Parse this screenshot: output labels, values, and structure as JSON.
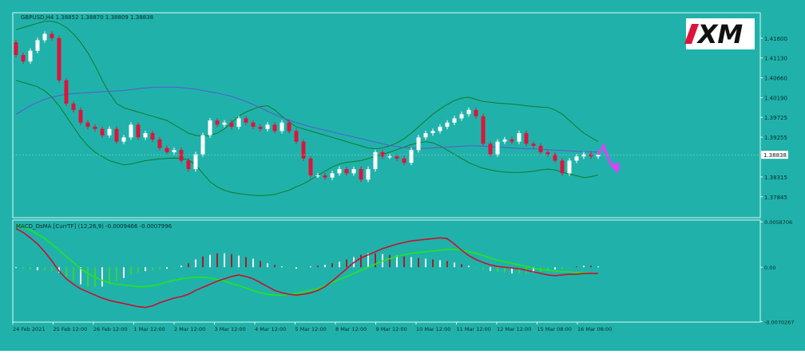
{
  "colors": {
    "background": "#20b2aa",
    "frame": "#dff5f3",
    "axis_text": "#0a2a2a",
    "bull_candle": "#ffffff",
    "bear_candle": "#dc143c",
    "bollinger": "#0f7a2a",
    "moving_average": "#5a58d0",
    "macd_signal": "#22e61e",
    "macd_line": "#c8102e",
    "hist_white": "#f4f4f4",
    "hist_green": "#3fcf3f",
    "hist_red": "#a0202a",
    "projection": "#e040fb"
  },
  "header": {
    "symbol_line": "GBPUSD,H4 1.38852 1.38870 1.38809 1.38838",
    "indicator_line": "MACD_OsMA [CurrTF] (12,26,9) -0.0009466 -0.0007996"
  },
  "logo": {
    "text": "XM"
  },
  "chart_data": [
    {
      "type": "candlestick",
      "title": "GBPUSD,H4",
      "ylim": [
        1.3735,
        1.422
      ],
      "y_ticks": [
        "1.41600",
        "1.41130",
        "1.40660",
        "1.40190",
        "1.39725",
        "1.39255",
        "1.38315",
        "1.37845"
      ],
      "current_price_label": "1.38838",
      "x_ticks": [
        "24 Feb 2021",
        "25 Feb 12:00",
        "26 Feb 12:00",
        "1 Mar 12:00",
        "2 Mar 12:00",
        "3 Mar 12:00",
        "4 Mar 12:00",
        "5 Mar 12:00",
        "8 Mar 12:00",
        "9 Mar 12:00",
        "10 Mar 12:00",
        "11 Mar 12:00",
        "12 Mar 12:00",
        "15 Mar 08:00",
        "16 Mar 08:00"
      ],
      "candles_close": [
        1.412,
        1.4105,
        1.413,
        1.4155,
        1.417,
        1.416,
        1.406,
        1.4005,
        1.399,
        1.396,
        1.395,
        1.3945,
        1.393,
        1.3945,
        1.3915,
        1.3925,
        1.3955,
        1.3925,
        1.3935,
        1.392,
        1.39,
        1.389,
        1.3895,
        1.387,
        1.385,
        1.3885,
        1.393,
        1.3965,
        1.3955,
        1.396,
        1.395,
        1.397,
        1.396,
        1.395,
        1.3945,
        1.3955,
        1.394,
        1.396,
        1.394,
        1.3915,
        1.3875,
        1.3835,
        1.3835,
        1.383,
        1.384,
        1.385,
        1.384,
        1.385,
        1.3825,
        1.385,
        1.389,
        1.388,
        1.388,
        1.3875,
        1.3865,
        1.3895,
        1.3925,
        1.3935,
        1.394,
        1.395,
        1.396,
        1.397,
        1.398,
        1.399,
        1.3975,
        1.391,
        1.3885,
        1.3915,
        1.392,
        1.3915,
        1.3935,
        1.391,
        1.3905,
        1.389,
        1.3885,
        1.387,
        1.384,
        1.387,
        1.388,
        1.3885,
        1.388,
        1.3884
      ],
      "candles_open": [
        1.415,
        1.412,
        1.4105,
        1.413,
        1.4155,
        1.417,
        1.416,
        1.406,
        1.4005,
        1.399,
        1.396,
        1.395,
        1.3945,
        1.393,
        1.3945,
        1.3915,
        1.3925,
        1.3955,
        1.3925,
        1.3935,
        1.392,
        1.39,
        1.389,
        1.3895,
        1.387,
        1.385,
        1.3885,
        1.393,
        1.3965,
        1.3955,
        1.396,
        1.395,
        1.397,
        1.396,
        1.395,
        1.3945,
        1.3955,
        1.394,
        1.396,
        1.394,
        1.3915,
        1.3875,
        1.3835,
        1.3835,
        1.383,
        1.384,
        1.385,
        1.384,
        1.385,
        1.3825,
        1.385,
        1.389,
        1.388,
        1.388,
        1.3875,
        1.3865,
        1.3895,
        1.3925,
        1.3935,
        1.394,
        1.395,
        1.396,
        1.397,
        1.398,
        1.399,
        1.3975,
        1.391,
        1.3885,
        1.3915,
        1.392,
        1.3915,
        1.3935,
        1.391,
        1.3905,
        1.389,
        1.3885,
        1.387,
        1.384,
        1.387,
        1.388,
        1.3885,
        1.388
      ],
      "bollinger_upper": [
        1.418,
        1.4185,
        1.419,
        1.4195,
        1.42,
        1.42,
        1.4195,
        1.4185,
        1.417,
        1.415,
        1.4125,
        1.4095,
        1.406,
        1.403,
        1.4005,
        1.3995,
        1.399,
        1.3985,
        1.398,
        1.3975,
        1.397,
        1.3965,
        1.3955,
        1.3945,
        1.3935,
        1.393,
        1.3928,
        1.393,
        1.3935,
        1.3945,
        1.396,
        1.3975,
        1.3985,
        1.3992,
        1.3998,
        1.4,
        1.399,
        1.3975,
        1.3962,
        1.395,
        1.3945,
        1.394,
        1.3935,
        1.393,
        1.3925,
        1.392,
        1.3915,
        1.391,
        1.3905,
        1.39,
        1.3898,
        1.39,
        1.3905,
        1.3912,
        1.3922,
        1.3935,
        1.395,
        1.3965,
        1.398,
        1.3992,
        1.4003,
        1.4012,
        1.4018,
        1.402,
        1.4015,
        1.401,
        1.4008,
        1.4006,
        1.4005,
        1.4004,
        1.4002,
        1.4,
        1.3998,
        1.3997,
        1.3996,
        1.399,
        1.398,
        1.3965,
        1.395,
        1.3935,
        1.3925,
        1.3915
      ],
      "bollinger_lower": [
        1.406,
        1.4055,
        1.405,
        1.4045,
        1.4035,
        1.402,
        1.4,
        1.3975,
        1.395,
        1.3925,
        1.3905,
        1.389,
        1.388,
        1.387,
        1.3865,
        1.386,
        1.3862,
        1.3866,
        1.387,
        1.3872,
        1.3874,
        1.3875,
        1.3876,
        1.3875,
        1.3872,
        1.386,
        1.384,
        1.382,
        1.3808,
        1.38,
        1.3795,
        1.3792,
        1.379,
        1.3788,
        1.3787,
        1.3788,
        1.379,
        1.3795,
        1.38,
        1.3808,
        1.3815,
        1.3825,
        1.3835,
        1.3845,
        1.3855,
        1.3862,
        1.3866,
        1.3868,
        1.387,
        1.3875,
        1.388,
        1.3885,
        1.389,
        1.3896,
        1.3902,
        1.3908,
        1.3912,
        1.3915,
        1.3912,
        1.3905,
        1.3895,
        1.3885,
        1.3875,
        1.3865,
        1.3858,
        1.3852,
        1.3848,
        1.3845,
        1.3843,
        1.3842,
        1.3842,
        1.3843,
        1.3845,
        1.3848,
        1.385,
        1.3848,
        1.3843,
        1.3838,
        1.3834,
        1.383,
        1.3832,
        1.3836
      ],
      "moving_average": [
        1.398,
        1.399,
        1.4,
        1.4008,
        1.4015,
        1.402,
        1.4024,
        1.4027,
        1.4029,
        1.403,
        1.4031,
        1.4032,
        1.4033,
        1.4034,
        1.4035,
        1.4036,
        1.4038,
        1.404,
        1.4042,
        1.4043,
        1.4044,
        1.4044,
        1.4044,
        1.4043,
        1.4041,
        1.4039,
        1.4036,
        1.4033,
        1.403,
        1.4026,
        1.4022,
        1.4016,
        1.401,
        1.4003,
        1.3995,
        1.3987,
        1.3979,
        1.3972,
        1.3966,
        1.396,
        1.3955,
        1.395,
        1.3946,
        1.3942,
        1.3938,
        1.3934,
        1.393,
        1.3926,
        1.3922,
        1.3918,
        1.3914,
        1.391,
        1.3906,
        1.3903,
        1.3901,
        1.39,
        1.3899,
        1.3899,
        1.39,
        1.3901,
        1.3902,
        1.3903,
        1.3904,
        1.3905,
        1.3905,
        1.3904,
        1.3903,
        1.3902,
        1.3901,
        1.39,
        1.3899,
        1.3898,
        1.3898,
        1.3897,
        1.3896,
        1.3895,
        1.3894,
        1.3893,
        1.3892,
        1.3891,
        1.3891,
        1.389
      ],
      "projection": [
        1.3884,
        1.3905,
        1.3868,
        1.385
      ]
    },
    {
      "type": "histogram-line",
      "title": "MACD_OsMA [CurrTF] (12,26,9)",
      "ylim": [
        -0.0071,
        0.0061
      ],
      "y_ticks": [
        "0.0058706",
        "0.00",
        "-0.0070267"
      ],
      "histogram": [
        -0.0001,
        -0.0002,
        -0.0003,
        -0.0004,
        -0.0004,
        -0.0005,
        -0.0007,
        -0.0012,
        -0.0018,
        -0.0022,
        -0.0025,
        -0.0026,
        -0.0025,
        -0.0022,
        -0.0018,
        -0.0014,
        -0.001,
        -0.0007,
        -0.0005,
        -0.0004,
        -0.0003,
        -0.0002,
        -0.0001,
        0.0002,
        0.0005,
        0.001,
        0.0014,
        0.0016,
        0.0018,
        0.0018,
        0.0017,
        0.0015,
        0.0013,
        0.0011,
        0.0008,
        0.0005,
        0.0003,
        0.0001,
        -0.0001,
        -0.0002,
        -0.0001,
        0.0001,
        0.0002,
        0.0003,
        0.0005,
        0.0007,
        0.001,
        0.0013,
        0.0016,
        0.0018,
        0.0018,
        0.0017,
        0.0016,
        0.0015,
        0.0014,
        0.0013,
        0.0012,
        0.0011,
        0.001,
        0.0009,
        0.0008,
        0.0006,
        0.0004,
        0.0002,
        -0.0001,
        -0.0003,
        -0.0005,
        -0.0006,
        -0.0007,
        -0.0008,
        -0.0008,
        -0.0008,
        -0.0007,
        -0.0006,
        -0.0004,
        -0.0003,
        -0.0002,
        -0.0001,
        0.0001,
        0.0002,
        0.0002,
        0.0001
      ],
      "macd_line": [
        0.005,
        0.0045,
        0.0038,
        0.003,
        0.002,
        0.0008,
        -0.0005,
        -0.0015,
        -0.0022,
        -0.0028,
        -0.0032,
        -0.0036,
        -0.004,
        -0.0043,
        -0.0045,
        -0.0047,
        -0.0049,
        -0.0051,
        -0.0052,
        -0.005,
        -0.0046,
        -0.0043,
        -0.004,
        -0.0038,
        -0.0035,
        -0.003,
        -0.0026,
        -0.0022,
        -0.0018,
        -0.0015,
        -0.0012,
        -0.001,
        -0.0012,
        -0.0015,
        -0.002,
        -0.0025,
        -0.003,
        -0.0033,
        -0.0035,
        -0.0036,
        -0.0035,
        -0.0033,
        -0.003,
        -0.0025,
        -0.0018,
        -0.001,
        -0.0002,
        0.0006,
        0.0012,
        0.0016,
        0.002,
        0.0024,
        0.0027,
        0.003,
        0.0032,
        0.0034,
        0.0035,
        0.0036,
        0.0037,
        0.0038,
        0.0037,
        0.003,
        0.0022,
        0.0015,
        0.001,
        0.0006,
        0.0003,
        0.0001,
        0.0,
        -0.0001,
        -0.0002,
        -0.0004,
        -0.0006,
        -0.0008,
        -0.001,
        -0.0011,
        -0.001,
        -0.0009,
        -0.0009,
        -0.0008,
        -0.0008,
        -0.0008
      ],
      "signal_line": [
        0.0055,
        0.0052,
        0.0048,
        0.0043,
        0.0037,
        0.003,
        0.0022,
        0.0014,
        0.0006,
        -0.0002,
        -0.0008,
        -0.0013,
        -0.0017,
        -0.002,
        -0.0022,
        -0.0023,
        -0.0024,
        -0.0025,
        -0.0025,
        -0.0024,
        -0.0022,
        -0.0019,
        -0.0017,
        -0.0015,
        -0.0014,
        -0.0013,
        -0.0013,
        -0.0014,
        -0.0016,
        -0.0018,
        -0.0021,
        -0.0024,
        -0.0027,
        -0.003,
        -0.0033,
        -0.0035,
        -0.0036,
        -0.0036,
        -0.0035,
        -0.0034,
        -0.0032,
        -0.003,
        -0.0028,
        -0.0024,
        -0.002,
        -0.0016,
        -0.0012,
        -0.0008,
        -0.0004,
        0.0,
        0.0004,
        0.0008,
        0.0011,
        0.0014,
        0.0016,
        0.0018,
        0.0019,
        0.002,
        0.0021,
        0.0022,
        0.0023,
        0.0023,
        0.0022,
        0.002,
        0.0018,
        0.0015,
        0.0012,
        0.0009,
        0.0007,
        0.0005,
        0.0003,
        0.0001,
        -0.0001,
        -0.0003,
        -0.0004,
        -0.0005,
        -0.0006,
        -0.0006,
        -0.0007,
        -0.0007,
        -0.0008,
        -0.0008
      ]
    }
  ]
}
